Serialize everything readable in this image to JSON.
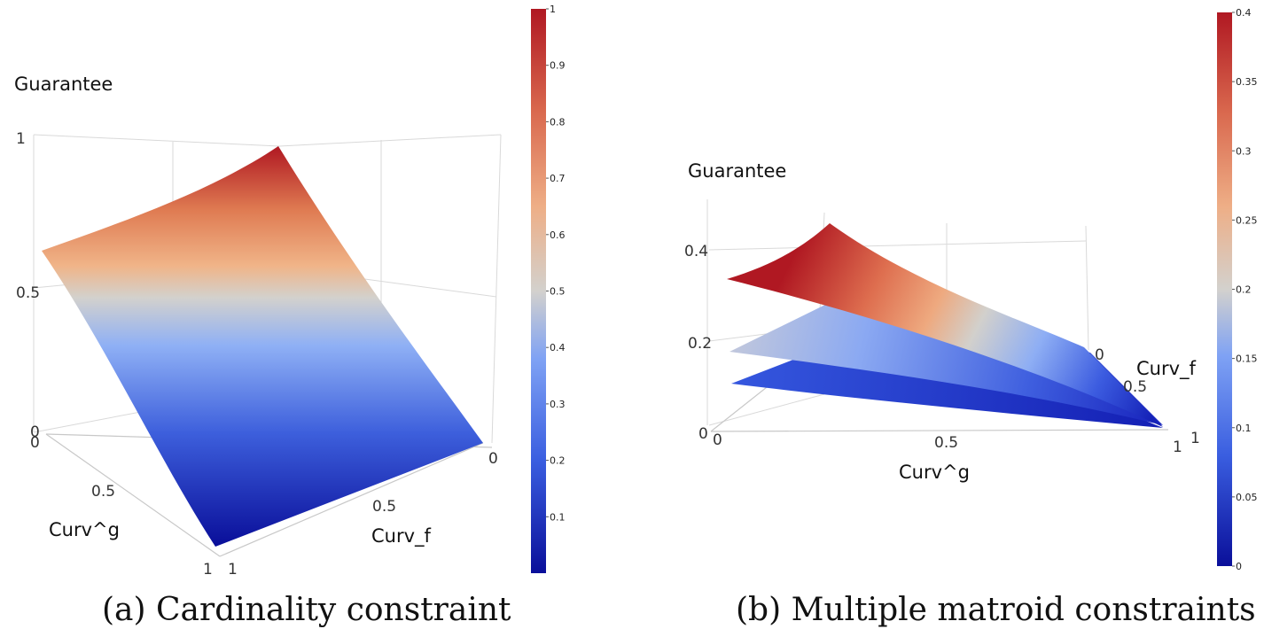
{
  "chart_data": [
    {
      "type": "surface",
      "caption": "(a) Cardinality constraint",
      "zlabel": "Guarantee",
      "xlabel": "Curv_f",
      "ylabel": "Curv^g",
      "x_ticks": [
        "0",
        "0.5",
        "1"
      ],
      "y_ticks": [
        "0",
        "0.5",
        "1"
      ],
      "z_ticks": [
        "0",
        "0.5",
        "1"
      ],
      "zlim": [
        0,
        1
      ],
      "surfaces": [
        {
          "corners": {
            "f0_g0": 1.0,
            "f1_g0": 0.63,
            "f0_g1": 0.0,
            "f1_g1": 0.0
          }
        }
      ],
      "colorbar": {
        "range": [
          0,
          1
        ],
        "ticks": [
          "0.1",
          "0.2",
          "0.3",
          "0.4",
          "0.5",
          "0.6",
          "0.7",
          "0.8",
          "0.9",
          "1"
        ]
      },
      "colorscale": [
        "#0a0f9a",
        "#4a73e6",
        "#9bb7f4",
        "#d2d0cc",
        "#eab08a",
        "#d9684e",
        "#b01822"
      ]
    },
    {
      "type": "surface",
      "caption": "(b) Multiple matroid constraints",
      "zlabel": "Guarantee",
      "xlabel": "Curv_f",
      "ylabel": "Curv^g",
      "x_ticks": [
        "0",
        "0.5",
        "1"
      ],
      "y_ticks": [
        "0",
        "0.5",
        "1"
      ],
      "z_ticks": [
        "0",
        "0.2",
        "0.4"
      ],
      "zlim": [
        0,
        0.45
      ],
      "surfaces": [
        {
          "corners": {
            "g0_f0": 0.4,
            "g0_f1": 0.33,
            "g1_f0": 0.03,
            "g1_f1": 0.0
          }
        },
        {
          "corners": {
            "g0_f0": 0.25,
            "g0_f1": 0.17,
            "g1_f0": 0.02,
            "g1_f1": 0.0
          }
        },
        {
          "corners": {
            "g0_f0": 0.12,
            "g0_f1": 0.1,
            "g1_f0": 0.01,
            "g1_f1": 0.0
          }
        }
      ],
      "colorbar": {
        "range": [
          0,
          0.4
        ],
        "ticks": [
          "0",
          "0.05",
          "0.1",
          "0.15",
          "0.2",
          "0.25",
          "0.3",
          "0.35",
          "0.4"
        ]
      },
      "colorscale": [
        "#0a0f9a",
        "#4a73e6",
        "#9bb7f4",
        "#d2d0cc",
        "#eab08a",
        "#d9684e",
        "#b01822"
      ]
    }
  ]
}
